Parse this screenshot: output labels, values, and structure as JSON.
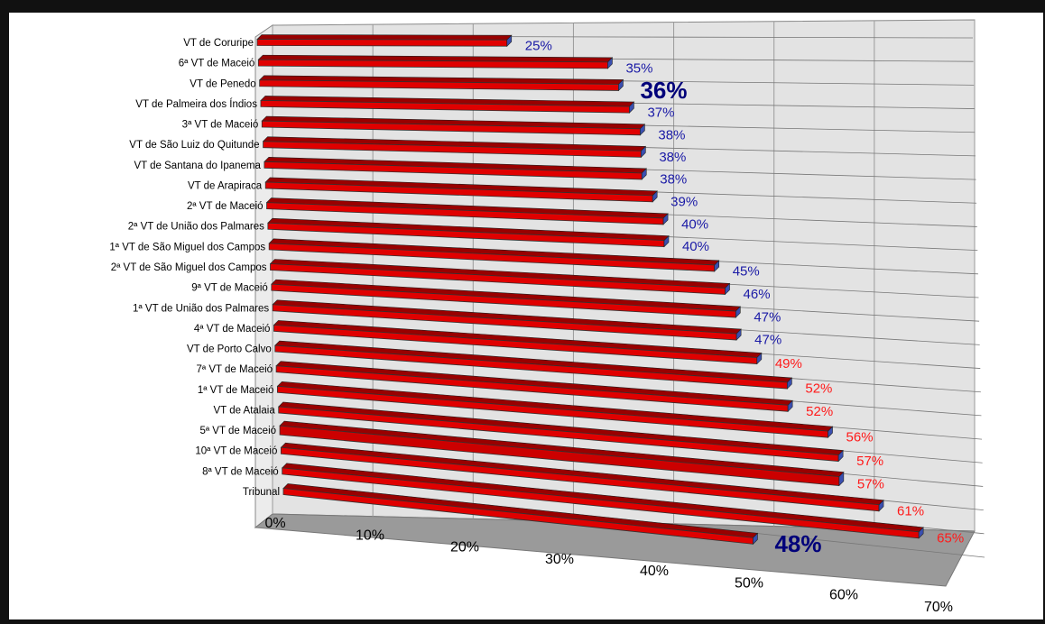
{
  "chart_data": {
    "type": "bar",
    "orientation": "horizontal",
    "style": "3d",
    "title": "",
    "xlabel": "",
    "ylabel": "",
    "xlim": [
      0,
      70
    ],
    "ticks": [
      "0%",
      "10%",
      "20%",
      "30%",
      "40%",
      "50%",
      "60%",
      "70%"
    ],
    "grid": true,
    "legend": "none",
    "categories": [
      "VT de Coruripe",
      "6ª VT de Maceió",
      "VT de Penedo",
      "VT de Palmeira dos Índios",
      "3ª VT de Maceió",
      "VT de São Luiz do Quitunde",
      "VT de Santana do Ipanema",
      "VT de Arapiraca",
      "2ª VT de Maceió",
      "2ª VT de União dos Palmares",
      "1ª VT de São Miguel dos Campos",
      "2ª VT de São Miguel dos Campos",
      "9ª VT de Maceió",
      "1ª VT de União dos Palmares",
      "4ª VT de Maceió",
      "VT de Porto Calvo",
      "7ª VT de Maceió",
      "1ª VT de Maceió",
      "VT de Atalaia",
      "5ª VT de Maceió",
      "10ª VT de Maceió",
      "8ª VT de Maceió",
      "Tribunal"
    ],
    "values": [
      25,
      35,
      36,
      37,
      38,
      38,
      38,
      39,
      40,
      40,
      45,
      46,
      47,
      47,
      49,
      52,
      52,
      56,
      57,
      57,
      61,
      65,
      48
    ],
    "data_labels": [
      "25%",
      "35%",
      "36%",
      "37%",
      "38%",
      "38%",
      "38%",
      "39%",
      "40%",
      "40%",
      "45%",
      "46%",
      "47%",
      "47%",
      "49%",
      "52%",
      "52%",
      "56%",
      "57%",
      "57%",
      "61%",
      "65%",
      "48%"
    ],
    "highlighted_labels": [
      "36%",
      "48%"
    ],
    "colors": {
      "bar": "#e00000",
      "bar_dark": "#990000",
      "bar_edge": "#3a4fb0",
      "highlight_bar": "#cc0000",
      "label_low": "#1a1aa6",
      "label_high": "#ff1a1a",
      "label_bold": "#00007a",
      "wall": "#e3e3e3",
      "floor": "#9a9a9a",
      "background": "#ffffff",
      "frame": "#111111"
    }
  }
}
